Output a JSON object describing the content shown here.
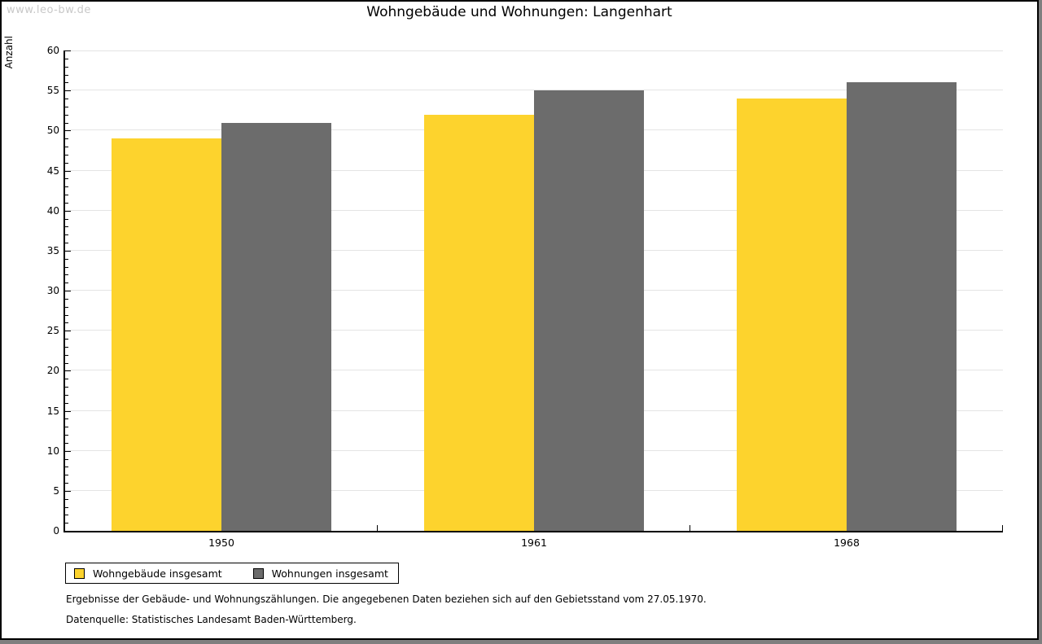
{
  "watermark": "www.leo-bw.de",
  "chart_data": {
    "type": "bar",
    "title": "Wohngebäude und Wohnungen: Langenhart",
    "ylabel": "Anzahl",
    "xlabel": "",
    "categories": [
      "1950",
      "1961",
      "1968"
    ],
    "series": [
      {
        "name": "Wohngebäude insgesamt",
        "color": "#fdd32d",
        "values": [
          49,
          52,
          54
        ]
      },
      {
        "name": "Wohnungen insgesamt",
        "color": "#6c6c6c",
        "values": [
          51,
          55,
          56
        ]
      }
    ],
    "ylim": [
      0,
      60
    ],
    "y_major_step": 5,
    "y_minor_step": 1,
    "grid": "horizontal-major",
    "legend_position": "bottom-left"
  },
  "footnotes": [
    "Ergebnisse der Gebäude- und Wohnungszählungen. Die angegebenen Daten beziehen sich auf den Gebietsstand vom 27.05.1970.",
    "Datenquelle: Statistisches Landesamt Baden-Württemberg."
  ]
}
